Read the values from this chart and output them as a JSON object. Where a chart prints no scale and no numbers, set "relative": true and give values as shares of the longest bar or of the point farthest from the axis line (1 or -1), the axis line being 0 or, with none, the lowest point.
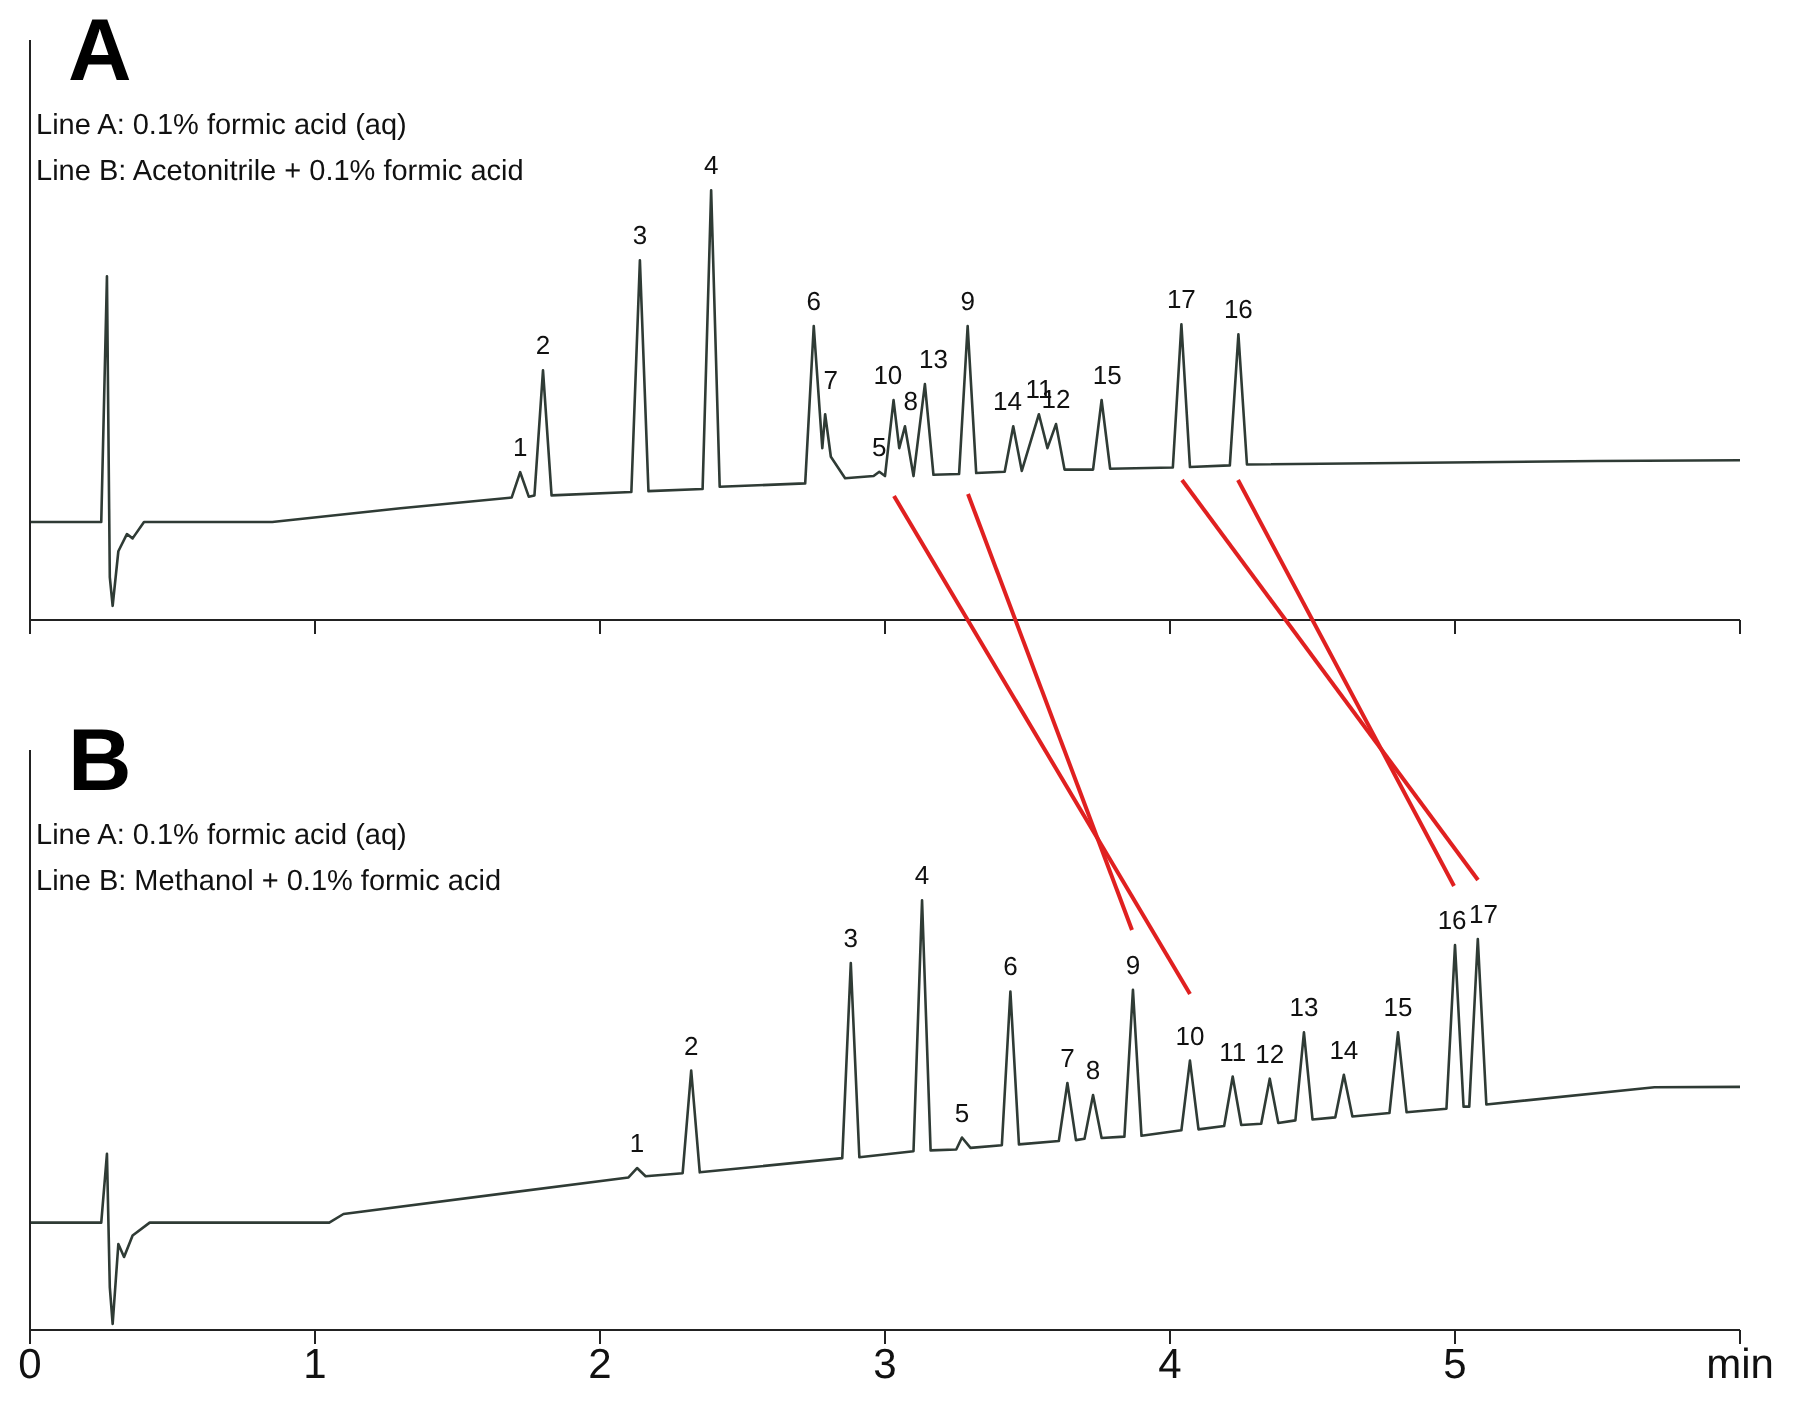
{
  "chart_data": [
    {
      "type": "line",
      "title": "A",
      "relative": true,
      "tick_labels": false,
      "grid": false,
      "legend": false,
      "marker": "none",
      "line_style": "solid",
      "xlim": [
        0,
        6
      ],
      "xticks": [
        0,
        1,
        2,
        3,
        4,
        5,
        {
          "value": 6,
          "label": null
        }
      ],
      "annotations": [
        "Line A: 0.1% formic acid (aq)",
        "Line B: Acetonitrile + 0.1% formic acid",
        {
          "text": "1",
          "x": 1.72,
          "y": 0.344
        },
        {
          "text": "2",
          "x": 1.8,
          "y": 0.581
        },
        {
          "text": "3",
          "x": 2.14,
          "y": 0.837
        },
        {
          "text": "4",
          "x": 2.39,
          "y": 1
        },
        {
          "text": "6",
          "x": 2.75,
          "y": 0.684
        },
        {
          "text": "7",
          "x": 2.81,
          "y": 0.5
        },
        {
          "text": "5",
          "x": 2.98,
          "y": 0.345
        },
        {
          "text": "10",
          "x": 3.01,
          "y": 0.512
        },
        {
          "text": "8",
          "x": 3.09,
          "y": 0.451
        },
        {
          "text": "13",
          "x": 3.17,
          "y": 0.549
        },
        {
          "text": "9",
          "x": 3.29,
          "y": 0.684
        },
        {
          "text": "14",
          "x": 3.43,
          "y": 0.451
        },
        {
          "text": "11",
          "x": 3.54,
          "y": 0.479
        },
        {
          "text": "12",
          "x": 3.6,
          "y": 0.456
        },
        {
          "text": "15",
          "x": 3.78,
          "y": 0.512
        },
        {
          "text": "17",
          "x": 4.04,
          "y": 0.688
        },
        {
          "text": "16",
          "x": 4.24,
          "y": 0.665
        }
      ],
      "series": [
        {
          "color": "#2f3b35",
          "x": [
            0,
            0.25,
            0.27,
            0.28,
            0.29,
            0.31,
            0.34,
            0.36,
            0.4,
            0.85,
            1.3,
            1.69,
            1.72,
            1.75,
            1.77,
            1.8,
            1.83,
            2.11,
            2.14,
            2.17,
            2.36,
            2.39,
            2.42,
            2.72,
            2.75,
            2.78,
            2.79,
            2.81,
            2.86,
            2.96,
            2.98,
            3.0,
            3.03,
            3.05,
            3.07,
            3.1,
            3.14,
            3.17,
            3.26,
            3.29,
            3.32,
            3.42,
            3.45,
            3.48,
            3.54,
            3.57,
            3.6,
            3.63,
            3.73,
            3.76,
            3.79,
            4.01,
            4.04,
            4.07,
            4.21,
            4.24,
            4.27,
            5.5,
            6
          ],
          "values": [
            0.228,
            0.228,
            0.8,
            0.1,
            0.033,
            0.16,
            0.2,
            0.19,
            0.228,
            0.228,
            0.26,
            0.285,
            0.344,
            0.287,
            0.29,
            0.581,
            0.29,
            0.298,
            0.837,
            0.3,
            0.305,
            1,
            0.31,
            0.318,
            0.684,
            0.4,
            0.479,
            0.38,
            0.33,
            0.335,
            0.345,
            0.335,
            0.512,
            0.4,
            0.451,
            0.335,
            0.549,
            0.338,
            0.34,
            0.684,
            0.342,
            0.345,
            0.451,
            0.347,
            0.479,
            0.4,
            0.456,
            0.35,
            0.35,
            0.512,
            0.352,
            0.355,
            0.688,
            0.356,
            0.36,
            0.665,
            0.362,
            0.37,
            0.372
          ]
        }
      ]
    },
    {
      "type": "line",
      "title": "B",
      "relative": true,
      "tick_labels": "x",
      "grid": false,
      "legend": false,
      "marker": "none",
      "line_style": "solid",
      "xlim": [
        0,
        6
      ],
      "xticks": [
        0,
        1,
        2,
        3,
        4,
        5,
        {
          "value": 6,
          "label": "min"
        }
      ],
      "annotations": [
        "Line A: 0.1% formic acid (aq)",
        "Line B: Methanol + 0.1% formic acid",
        {
          "text": "1",
          "x": 2.13,
          "y": 0.377
        },
        {
          "text": "2",
          "x": 2.32,
          "y": 0.604
        },
        {
          "text": "3",
          "x": 2.88,
          "y": 0.854
        },
        {
          "text": "4",
          "x": 3.13,
          "y": 1
        },
        {
          "text": "5",
          "x": 3.27,
          "y": 0.448
        },
        {
          "text": "6",
          "x": 3.44,
          "y": 0.788
        },
        {
          "text": "7",
          "x": 3.64,
          "y": 0.575
        },
        {
          "text": "8",
          "x": 3.73,
          "y": 0.547
        },
        {
          "text": "9",
          "x": 3.87,
          "y": 0.792
        },
        {
          "text": "10",
          "x": 4.07,
          "y": 0.627
        },
        {
          "text": "11",
          "x": 4.22,
          "y": 0.59
        },
        {
          "text": "12",
          "x": 4.35,
          "y": 0.585
        },
        {
          "text": "13",
          "x": 4.47,
          "y": 0.693
        },
        {
          "text": "14",
          "x": 4.61,
          "y": 0.594
        },
        {
          "text": "15",
          "x": 4.8,
          "y": 0.693
        },
        {
          "text": "16",
          "x": 4.99,
          "y": 0.896
        },
        {
          "text": "17",
          "x": 5.1,
          "y": 0.91
        }
      ],
      "series": [
        {
          "color": "#2f3b35",
          "x": [
            0,
            0.25,
            0.27,
            0.28,
            0.29,
            0.31,
            0.33,
            0.36,
            0.42,
            1.05,
            1.1,
            2.1,
            2.13,
            2.16,
            2.29,
            2.32,
            2.35,
            2.85,
            2.88,
            2.91,
            3.1,
            3.13,
            3.16,
            3.25,
            3.27,
            3.3,
            3.41,
            3.44,
            3.47,
            3.61,
            3.64,
            3.67,
            3.7,
            3.73,
            3.76,
            3.84,
            3.87,
            3.9,
            4.04,
            4.07,
            4.1,
            4.19,
            4.22,
            4.25,
            4.32,
            4.35,
            4.38,
            4.44,
            4.47,
            4.5,
            4.58,
            4.61,
            4.64,
            4.77,
            4.8,
            4.83,
            4.97,
            5.0,
            5.03,
            5.05,
            5.08,
            5.11,
            5.7,
            6
          ],
          "values": [
            0.25,
            0.25,
            0.41,
            0.1,
            0.014,
            0.2,
            0.17,
            0.22,
            0.25,
            0.25,
            0.27,
            0.355,
            0.377,
            0.358,
            0.365,
            0.604,
            0.367,
            0.4,
            0.854,
            0.402,
            0.416,
            1,
            0.418,
            0.42,
            0.448,
            0.424,
            0.43,
            0.788,
            0.432,
            0.44,
            0.575,
            0.442,
            0.445,
            0.547,
            0.447,
            0.45,
            0.792,
            0.452,
            0.465,
            0.627,
            0.467,
            0.475,
            0.59,
            0.477,
            0.48,
            0.585,
            0.482,
            0.488,
            0.693,
            0.49,
            0.495,
            0.594,
            0.497,
            0.505,
            0.693,
            0.507,
            0.515,
            0.896,
            0.52,
            0.52,
            0.91,
            0.525,
            0.565,
            0.566
          ]
        }
      ]
    }
  ]
}
